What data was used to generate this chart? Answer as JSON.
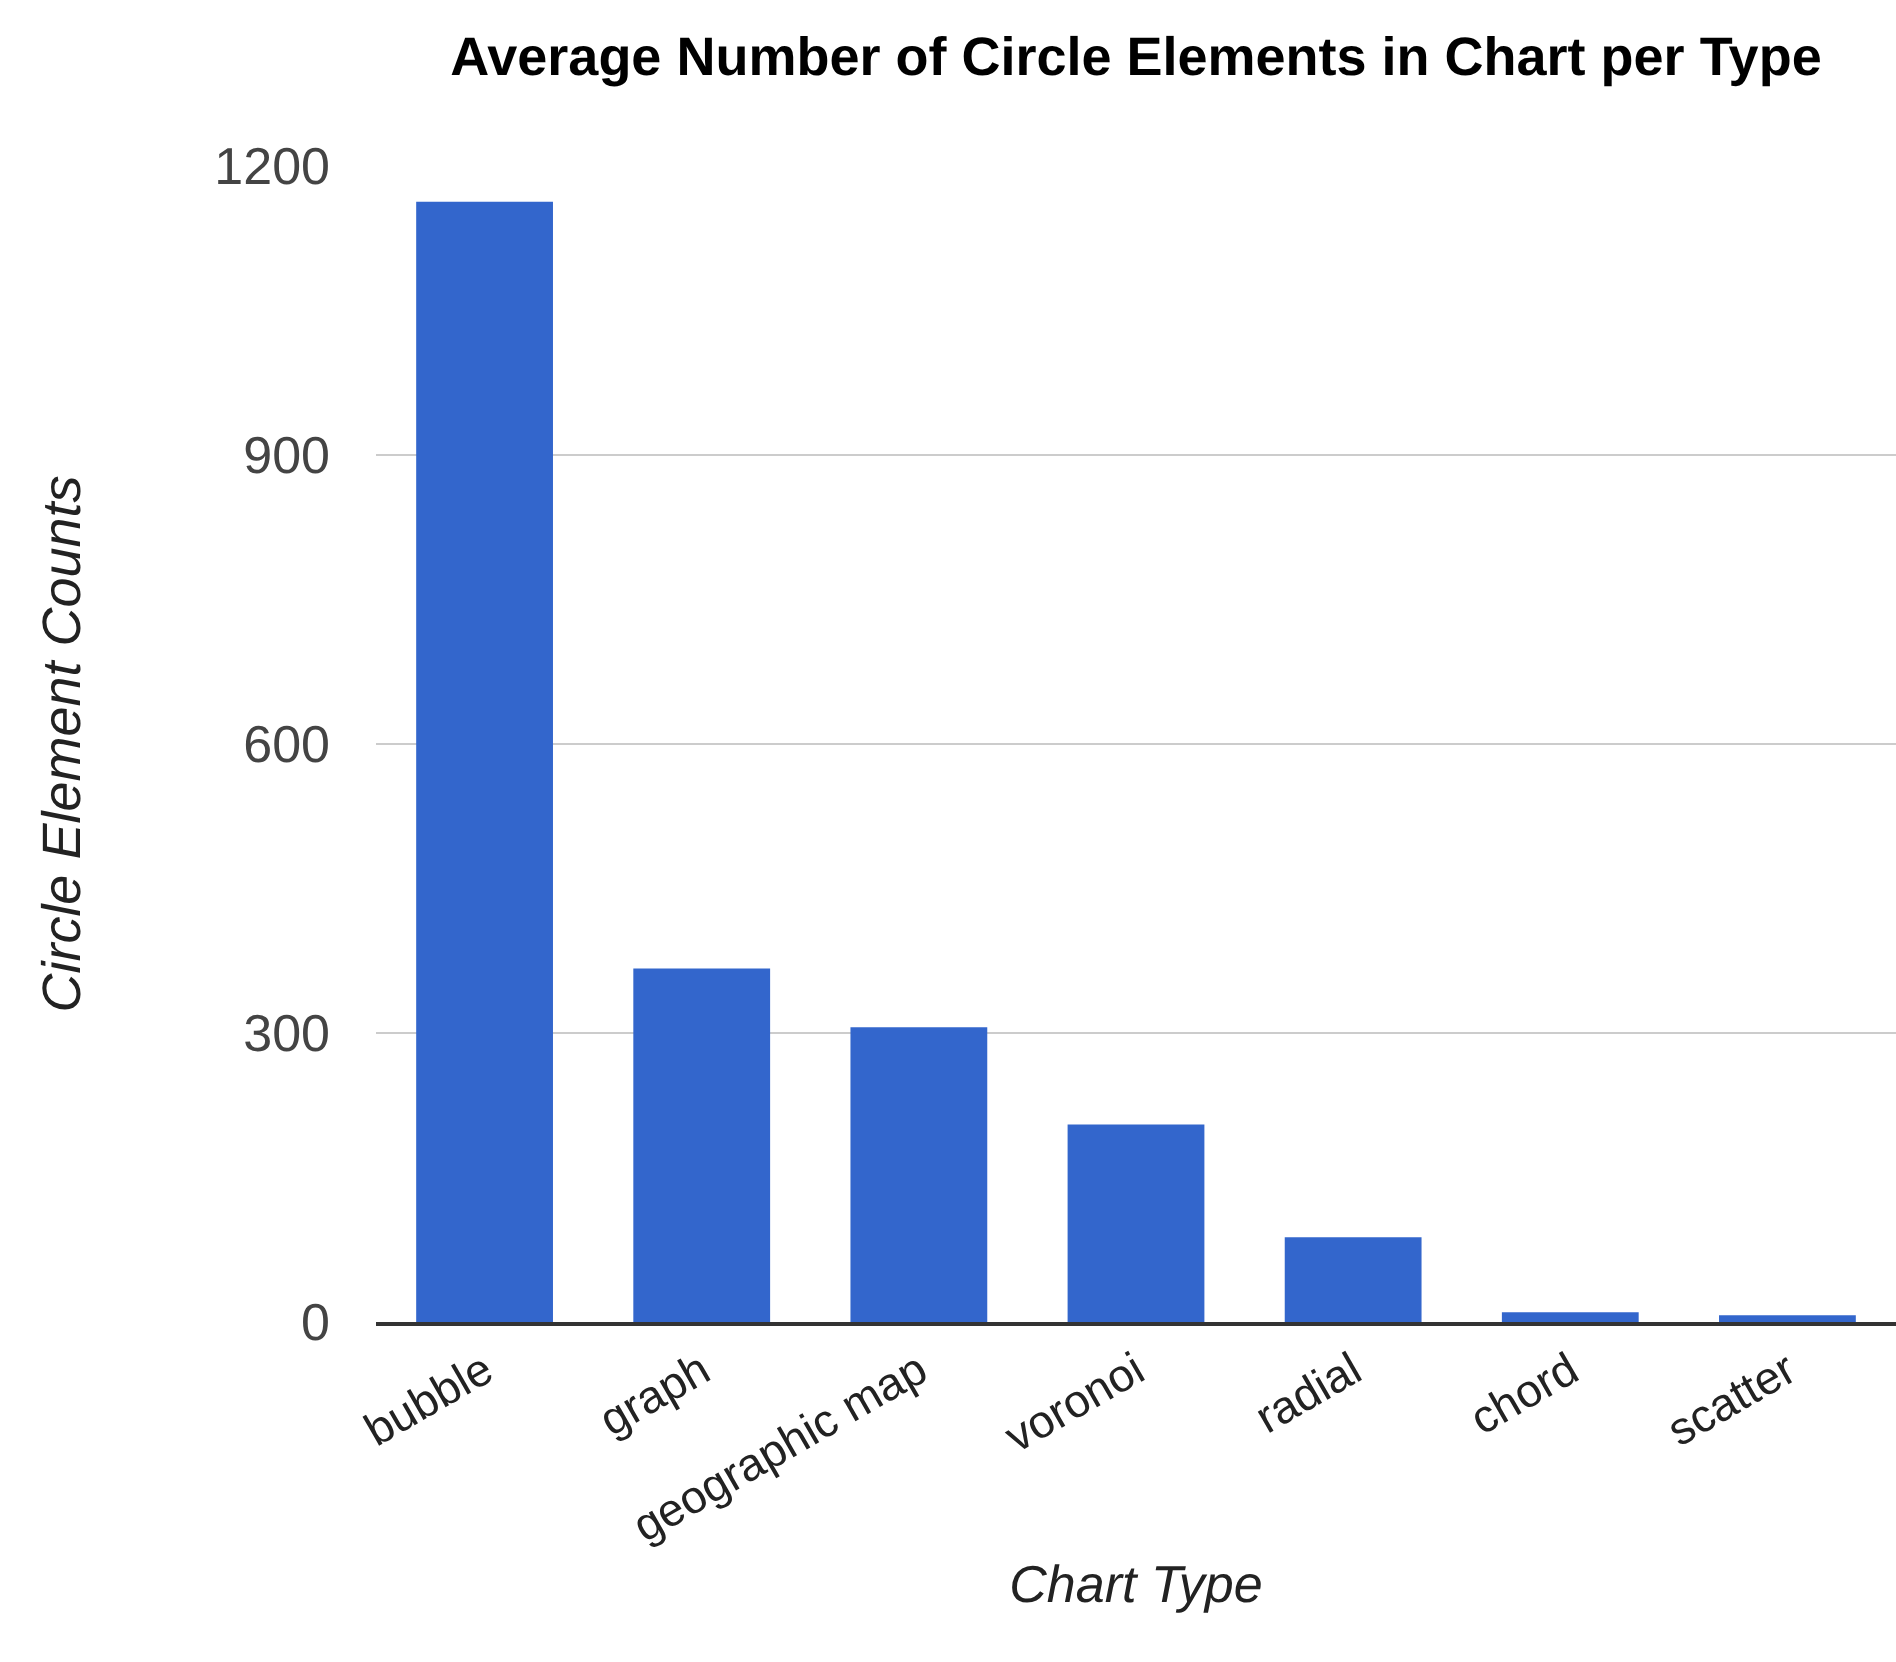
{
  "chart_data": {
    "type": "bar",
    "title": "Average Number of Circle Elements in Chart per Type",
    "xlabel": "Chart Type",
    "ylabel": "Circle Element Counts",
    "categories": [
      "bubble",
      "graph",
      "geographic map",
      "voronoi",
      "radial",
      "chord",
      "scatter"
    ],
    "values": [
      1163,
      367,
      306,
      205,
      88,
      10,
      7
    ],
    "color": "#3366cc",
    "ylim": [
      0,
      1200
    ],
    "yticks": [
      0,
      300,
      600,
      900,
      1200
    ],
    "grid": "y"
  }
}
